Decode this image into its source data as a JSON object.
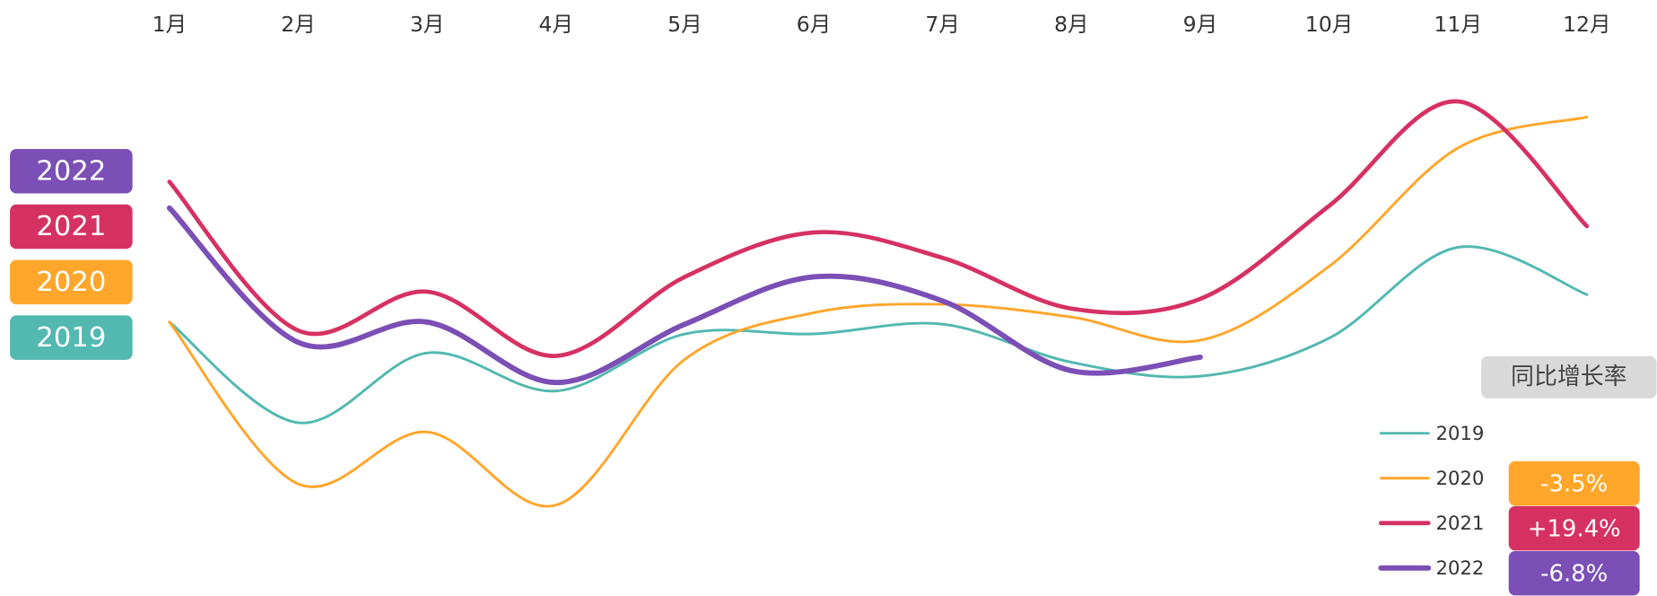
{
  "chart_data": {
    "type": "line",
    "categories": [
      "1月",
      "2月",
      "3月",
      "4月",
      "5月",
      "6月",
      "7月",
      "8月",
      "9月",
      "10月",
      "11月",
      "12月"
    ],
    "ylim": [
      0,
      100
    ],
    "growth_title": "同比增长率",
    "series": [
      {
        "name": "2019",
        "color": "#52b8b0",
        "values": [
          43.8,
          20,
          36.5,
          27.5,
          41,
          41,
          43.3,
          34.3,
          31,
          40,
          61.5,
          50.3
        ]
      },
      {
        "name": "2020",
        "color": "#ffa62b",
        "growth": "-3.5%",
        "values": [
          43.8,
          5.5,
          17.8,
          0.5,
          35,
          46,
          48,
          45,
          39.5,
          57,
          85,
          92.3
        ]
      },
      {
        "name": "2021",
        "color": "#d63163",
        "growth": "+19.4%",
        "values": [
          77,
          41.8,
          51,
          35.8,
          54.5,
          65,
          59,
          47,
          49.3,
          71.3,
          96,
          66.5
        ]
      },
      {
        "name": "2022",
        "color": "#7b4fb5",
        "growth": "-6.8%",
        "values": [
          70.8,
          39,
          43.8,
          29.5,
          43.3,
          54.5,
          48.8,
          32.3,
          35.5,
          null,
          null,
          null
        ]
      }
    ]
  }
}
